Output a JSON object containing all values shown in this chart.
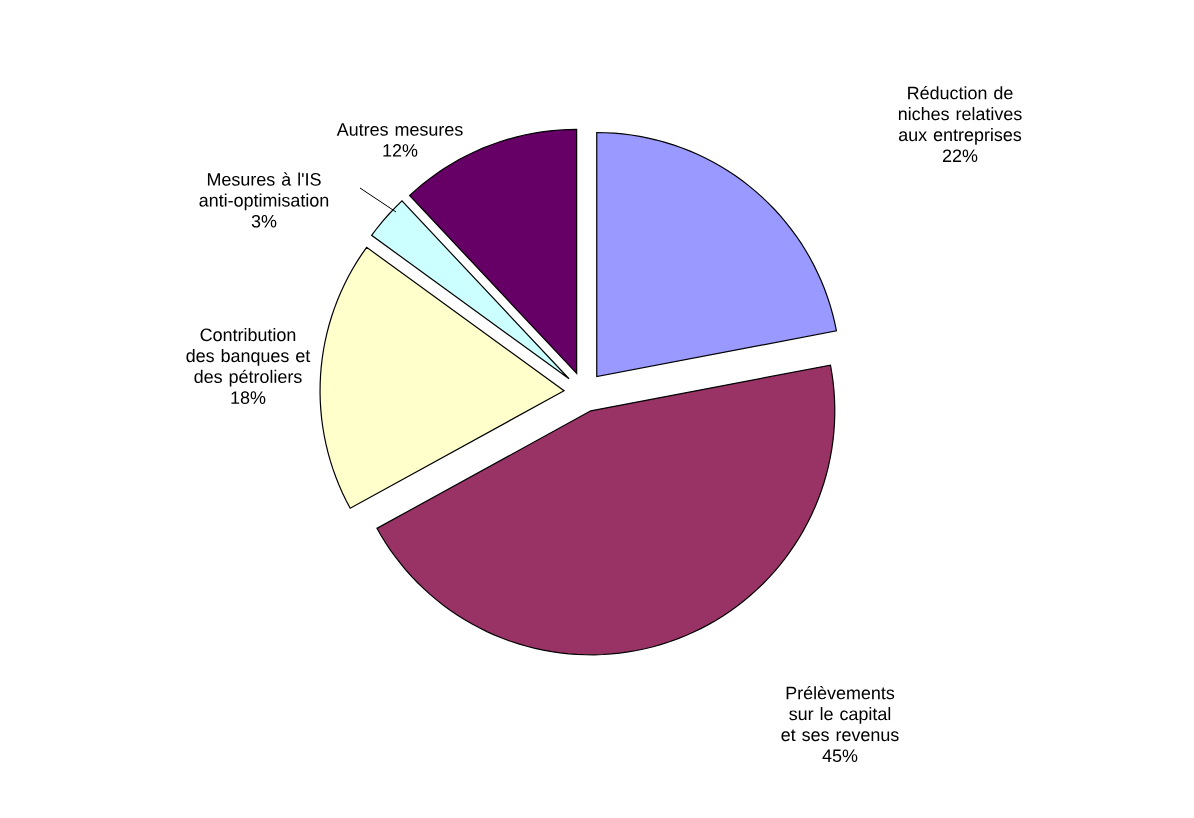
{
  "chart_data": {
    "type": "pie",
    "categories": [
      "Réduction de niches relatives aux entreprises",
      "Prélèvements sur le capital et ses revenus",
      "Contribution des banques et des pétroliers",
      "Mesures à l'IS anti-optimisation",
      "Autres mesures"
    ],
    "values": [
      22,
      45,
      18,
      3,
      12
    ],
    "value_labels": [
      "22%",
      "45%",
      "18%",
      "3%",
      "12%"
    ],
    "colors": [
      "#9999ff",
      "#993366",
      "#ffffcc",
      "#ccffff",
      "#660066"
    ]
  }
}
